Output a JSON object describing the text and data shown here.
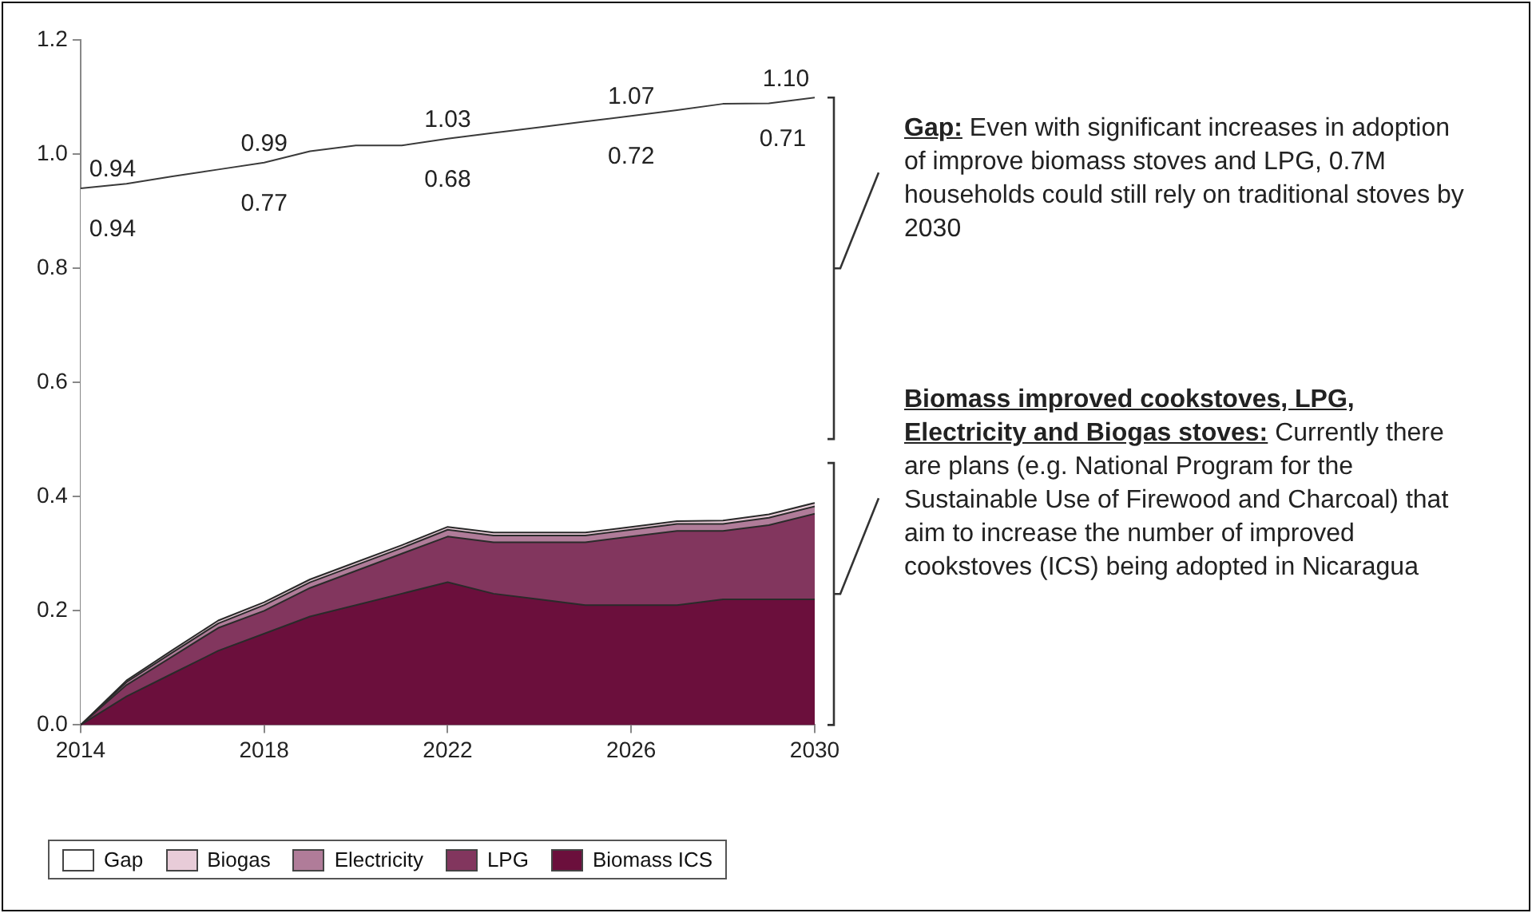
{
  "chart_data": {
    "type": "area",
    "stacked": true,
    "x": [
      2014,
      2015,
      2016,
      2017,
      2018,
      2019,
      2020,
      2021,
      2022,
      2023,
      2024,
      2025,
      2026,
      2027,
      2028,
      2029,
      2030
    ],
    "xlim": [
      2014,
      2030
    ],
    "xticks": [
      2014,
      2018,
      2022,
      2026,
      2030
    ],
    "ylim": [
      0,
      1.2
    ],
    "yticks": [
      {
        "value": 0,
        "label": "0.0"
      },
      {
        "value": 0.2,
        "label": "0.2"
      },
      {
        "value": 0.4,
        "label": "0.4"
      },
      {
        "value": 0.6,
        "label": "0.6"
      },
      {
        "value": 0.8,
        "label": "0.8"
      },
      {
        "value": 1,
        "label": "1.0"
      },
      {
        "value": 1.2,
        "label": "1.2"
      }
    ],
    "series": [
      {
        "name": "Biomass ICS",
        "color": "#6b0f3c",
        "values": [
          0,
          0.05,
          0.09,
          0.13,
          0.16,
          0.19,
          0.21,
          0.23,
          0.25,
          0.23,
          0.22,
          0.21,
          0.21,
          0.21,
          0.22,
          0.22,
          0.22
        ]
      },
      {
        "name": "LPG",
        "color": "#82365e",
        "values": [
          0,
          0.02,
          0.03,
          0.04,
          0.04,
          0.05,
          0.06,
          0.07,
          0.08,
          0.09,
          0.1,
          0.11,
          0.12,
          0.13,
          0.12,
          0.13,
          0.15
        ]
      },
      {
        "name": "Electricity",
        "color": "#b07c99",
        "values": [
          0,
          0.005,
          0.007,
          0.008,
          0.01,
          0.01,
          0.01,
          0.01,
          0.012,
          0.012,
          0.012,
          0.012,
          0.012,
          0.012,
          0.012,
          0.013,
          0.013
        ]
      },
      {
        "name": "Biogas",
        "color": "#e8ccd8",
        "values": [
          0,
          0.003,
          0.004,
          0.005,
          0.005,
          0.005,
          0.005,
          0.005,
          0.005,
          0.005,
          0.005,
          0.005,
          0.005,
          0.005,
          0.006,
          0.006,
          0.006
        ]
      },
      {
        "name": "Gap",
        "color": "#ffffff",
        "values": [
          0.94,
          0.87,
          0.83,
          0.79,
          0.77,
          0.75,
          0.73,
          0.7,
          0.68,
          0.7,
          0.71,
          0.72,
          0.72,
          0.72,
          0.73,
          0.72,
          0.71
        ],
        "value_labels": [
          "0.94",
          null,
          null,
          null,
          "0.77",
          null,
          null,
          null,
          "0.68",
          null,
          null,
          null,
          "0.72",
          null,
          null,
          null,
          "0.71"
        ]
      }
    ],
    "totals": [
      "0.94",
      null,
      null,
      null,
      "0.99",
      null,
      null,
      null,
      "1.03",
      null,
      null,
      null,
      "1.07",
      null,
      null,
      null,
      "1.10"
    ],
    "legend": "bottom",
    "marker": "none",
    "grid": false,
    "annotations": [
      "Gap: Even with significant increases in adoption of improve biomass  stoves and LPG, 0.7M households could still rely on traditional stoves by 2030",
      "Biomass improved cookstoves, LPG, Electricity and Biogas stoves: Currently there are plans (e.g. National Program for the Sustainable Use of Firewood and Charcoal) that aim to increase the number of improved cookstoves (ICS) being adopted in Nicaragua"
    ]
  }
}
